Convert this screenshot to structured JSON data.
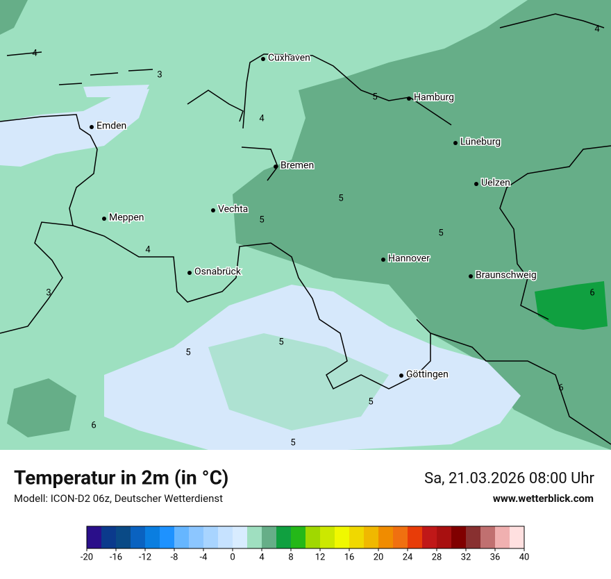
{
  "header": {
    "title": "Temperatur in 2m (in °C)",
    "subtitle": "Modell: ICON-D2 06z, Deutscher Wetterdienst",
    "date": "Sa, 21.03.2026 08:00 Uhr",
    "website": "www.wetterblick.com"
  },
  "map": {
    "cities": [
      "Cuxhaven",
      "Hamburg",
      "Emden",
      "Bremen",
      "Lüneburg",
      "Uelzen",
      "Vechta",
      "Meppen",
      "Hannover",
      "Osnabrück",
      "Braunschweig",
      "Göttingen"
    ],
    "contour_labels": [
      "4",
      "3",
      "4",
      "5",
      "5",
      "5",
      "5",
      "4",
      "3",
      "5",
      "5",
      "6",
      "5",
      "6",
      "5",
      "6",
      "4"
    ]
  },
  "colorbar": {
    "range": [
      -20,
      40
    ],
    "ticks": [
      -20,
      -16,
      -12,
      -8,
      -4,
      0,
      4,
      8,
      12,
      16,
      20,
      24,
      28,
      32,
      36,
      40
    ],
    "colors": [
      "#2a0f8a",
      "#0b3a8c",
      "#0a4a86",
      "#0a62c0",
      "#0a7ee0",
      "#1e92ff",
      "#66b6ff",
      "#8cc6ff",
      "#a8d4ff",
      "#c6e2ff",
      "#d8ecff",
      "#9fdfc0",
      "#66ae88",
      "#10a040",
      "#24b818",
      "#a0d800",
      "#cce800",
      "#f0f800",
      "#f0d800",
      "#f0b800",
      "#f08c00",
      "#f07010",
      "#e83c08",
      "#c01818",
      "#a81010",
      "#800000",
      "#883030",
      "#c07070",
      "#f0b0b0",
      "#ffe0e0"
    ]
  }
}
